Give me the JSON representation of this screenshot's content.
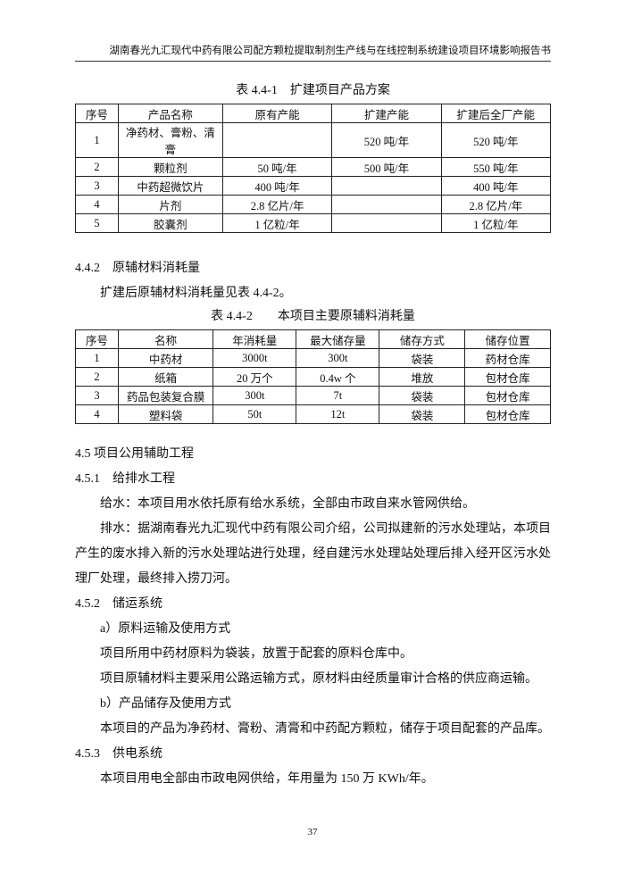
{
  "header": "湖南春光九汇现代中药有限公司配方颗粒提取制剂生产线与在线控制系统建设项目环境影响报告书",
  "table1": {
    "caption": "表 4.4-1　扩建项目产品方案",
    "columns": [
      "序号",
      "产品名称",
      "原有产能",
      "扩建产能",
      "扩建后全厂产能"
    ],
    "rows": [
      [
        "1",
        "净药材、膏粉、清膏",
        null,
        "520 吨/年",
        "520 吨/年"
      ],
      [
        "2",
        "颗粒剂",
        "50 吨/年",
        "500 吨/年",
        "550 吨/年"
      ],
      [
        "3",
        "中药超微饮片",
        "400 吨/年",
        null,
        "400 吨/年"
      ],
      [
        "4",
        "片剂",
        "2.8 亿片/年",
        null,
        "2.8 亿片/年"
      ],
      [
        "5",
        "胶囊剂",
        "1 亿粒/年",
        null,
        "1 亿粒/年"
      ]
    ]
  },
  "section_442": {
    "heading": "4.4.2　原辅材料消耗量",
    "paragraph": "扩建后原辅材料消耗量见表 4.4-2。"
  },
  "table2": {
    "caption": "表 4.4-2　　本项目主要原辅料消耗量",
    "columns": [
      "序号",
      "名称",
      "年消耗量",
      "最大储存量",
      "储存方式",
      "储存位置"
    ],
    "rows": [
      [
        "1",
        "中药材",
        "3000t",
        "300t",
        "袋装",
        "药材仓库"
      ],
      [
        "2",
        "纸箱",
        "20 万个",
        "0.4w 个",
        "堆放",
        "包材仓库"
      ],
      [
        "3",
        "药品包装复合膜",
        "300t",
        "7t",
        "袋装",
        "包材仓库"
      ],
      [
        "4",
        "塑料袋",
        "50t",
        "12t",
        "袋装",
        "包材仓库"
      ]
    ]
  },
  "sections": [
    {
      "heading": "4.5 项目公用辅助工程",
      "paragraphs": []
    },
    {
      "heading": "4.5.1　给排水工程",
      "paragraphs": [
        "给水：本项目用水依托原有给水系统，全部由市政自来水管网供给。",
        "排水：据湖南春光九汇现代中药有限公司介绍，公司拟建新的污水处理站，本项目产生的废水排入新的污水处理站进行处理，经自建污水处理站处理后排入经开区污水处理厂处理，最终排入捞刀河。"
      ]
    },
    {
      "heading": "4.5.2　储运系统",
      "paragraphs": [
        "a）原料运输及使用方式",
        "项目所用中药材原料为袋装，放置于配套的原料仓库中。",
        "项目原辅材料主要采用公路运输方式，原材料由经质量审计合格的供应商运输。",
        "b）产品储存及使用方式",
        "本项目的产品为净药材、膏粉、清膏和中药配方颗粒，储存于项目配套的产品库。"
      ]
    },
    {
      "heading": "4.5.3　供电系统",
      "paragraphs": [
        "本项目用电全部由市政电网供给，年用量为 150 万 KWh/年。"
      ]
    }
  ],
  "page_number": "37"
}
